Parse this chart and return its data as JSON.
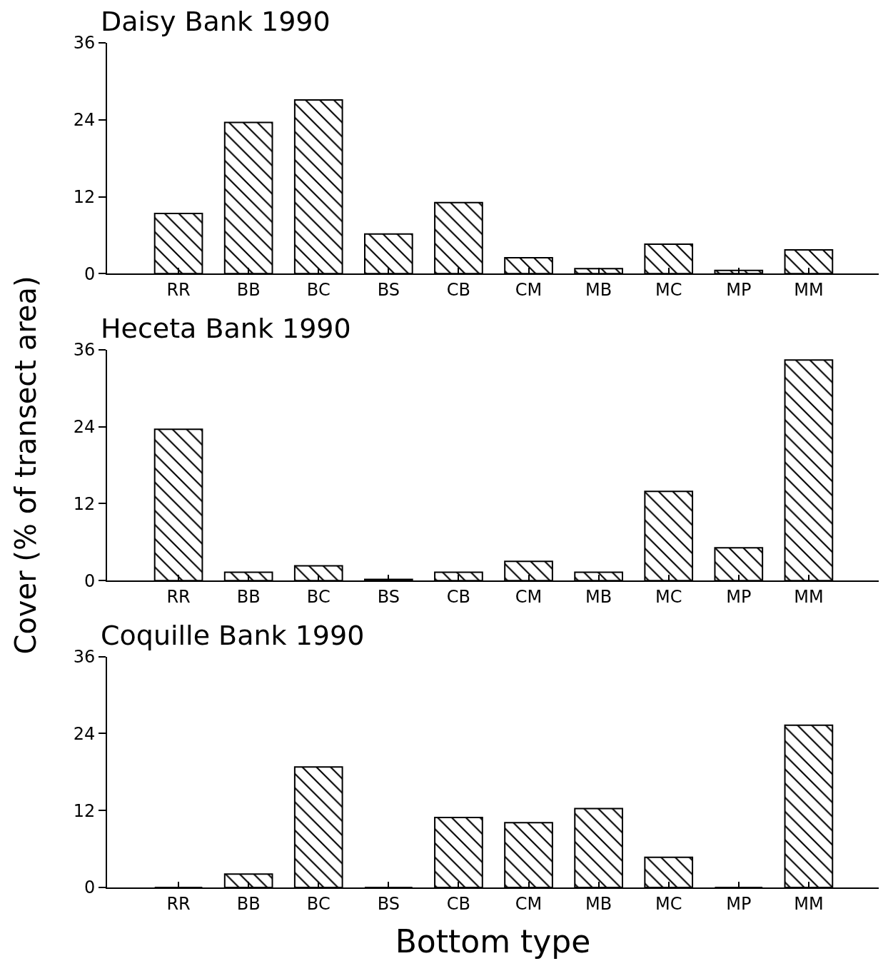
{
  "chart_data": [
    {
      "type": "bar",
      "title": "Daisy Bank 1990",
      "categories": [
        "RR",
        "BB",
        "BC",
        "BS",
        "CB",
        "CM",
        "MB",
        "MC",
        "MP",
        "MM"
      ],
      "values": [
        9.4,
        23.6,
        27.1,
        6.2,
        11.1,
        2.5,
        0.8,
        4.6,
        0.5,
        3.7
      ],
      "color": "#000000",
      "ylim": [
        0,
        36
      ],
      "yticks": [
        0,
        12,
        24,
        36
      ]
    },
    {
      "type": "bar",
      "title": "Heceta Bank 1990",
      "ylabel": "Cover (% of transect area)",
      "categories": [
        "RR",
        "BB",
        "BC",
        "BS",
        "CB",
        "CM",
        "MB",
        "MC",
        "MP",
        "MM"
      ],
      "values": [
        23.6,
        1.3,
        2.3,
        0.2,
        1.3,
        3.0,
        1.3,
        13.9,
        5.1,
        34.4
      ],
      "color": "#000000",
      "ylim": [
        0,
        36
      ],
      "yticks": [
        0,
        12,
        24,
        36
      ]
    },
    {
      "type": "bar",
      "title": "Coquille Bank 1990",
      "xlabel": "Bottom type",
      "categories": [
        "RR",
        "BB",
        "BC",
        "BS",
        "CB",
        "CM",
        "MB",
        "MC",
        "MP",
        "MM"
      ],
      "values": [
        0,
        2.1,
        18.8,
        0,
        10.9,
        10.1,
        12.3,
        4.7,
        0,
        25.3
      ],
      "color": "#000000",
      "ylim": [
        0,
        36
      ],
      "yticks": [
        0,
        12,
        24,
        36
      ]
    }
  ]
}
